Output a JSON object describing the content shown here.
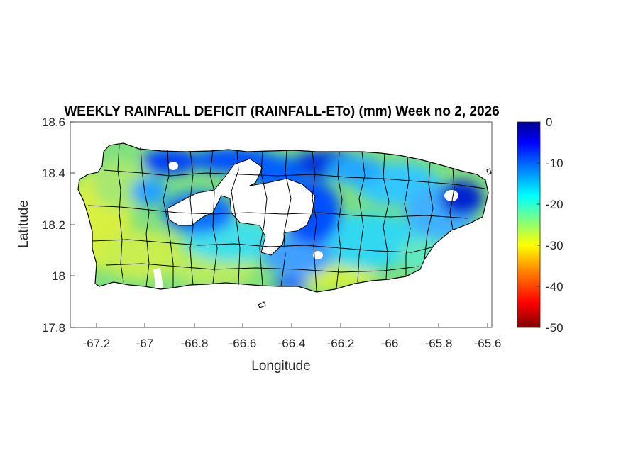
{
  "title": "WEEKLY RAINFALL DEFICIT (RAINFALL-ETo) (mm) Week no 2, 2026",
  "xlabel": "Longitude",
  "ylabel": "Latitude",
  "x_ticks": [
    "-67.2",
    "-67",
    "-66.8",
    "-66.6",
    "-66.4",
    "-66.2",
    "-66",
    "-65.8",
    "-65.6"
  ],
  "y_ticks": [
    "18.6",
    "18.4",
    "18.2",
    "18",
    "17.8"
  ],
  "colorbar_ticks": [
    "0",
    "-10",
    "-20",
    "-30",
    "-40",
    "-50"
  ],
  "colors": {
    "colormap": [
      "#800000",
      "#ff0000",
      "#ff8000",
      "#ffff00",
      "#80ff80",
      "#00ffff",
      "#0080ff",
      "#0000ff",
      "#00008f"
    ],
    "land_outline": "#000000",
    "no_data": "#ffffff"
  },
  "chart_data": {
    "type": "heatmap",
    "title": "WEEKLY RAINFALL DEFICIT (RAINFALL-ETo) (mm) Week no 2, 2026",
    "xlabel": "Longitude",
    "ylabel": "Latitude",
    "xlim": [
      -67.3,
      -65.58
    ],
    "ylim": [
      17.8,
      18.6
    ],
    "x_ticks": [
      -67.2,
      -67,
      -66.8,
      -66.6,
      -66.4,
      -66.2,
      -66,
      -65.8,
      -65.6
    ],
    "y_ticks": [
      18.6,
      18.4,
      18.2,
      18,
      17.8
    ],
    "color_range": [
      -50,
      0
    ],
    "colorbar_ticks": [
      0,
      -10,
      -20,
      -30,
      -40,
      -50
    ],
    "units": "mm",
    "region": "Puerto Rico",
    "approx_values_by_area": [
      {
        "area": "west coast",
        "value": -27
      },
      {
        "area": "southwest",
        "value": -26
      },
      {
        "area": "south coast",
        "value": -24
      },
      {
        "area": "north-central coast",
        "value": -5
      },
      {
        "area": "east / northeast",
        "value": -10
      },
      {
        "area": "central interior",
        "value": -12
      }
    ]
  }
}
